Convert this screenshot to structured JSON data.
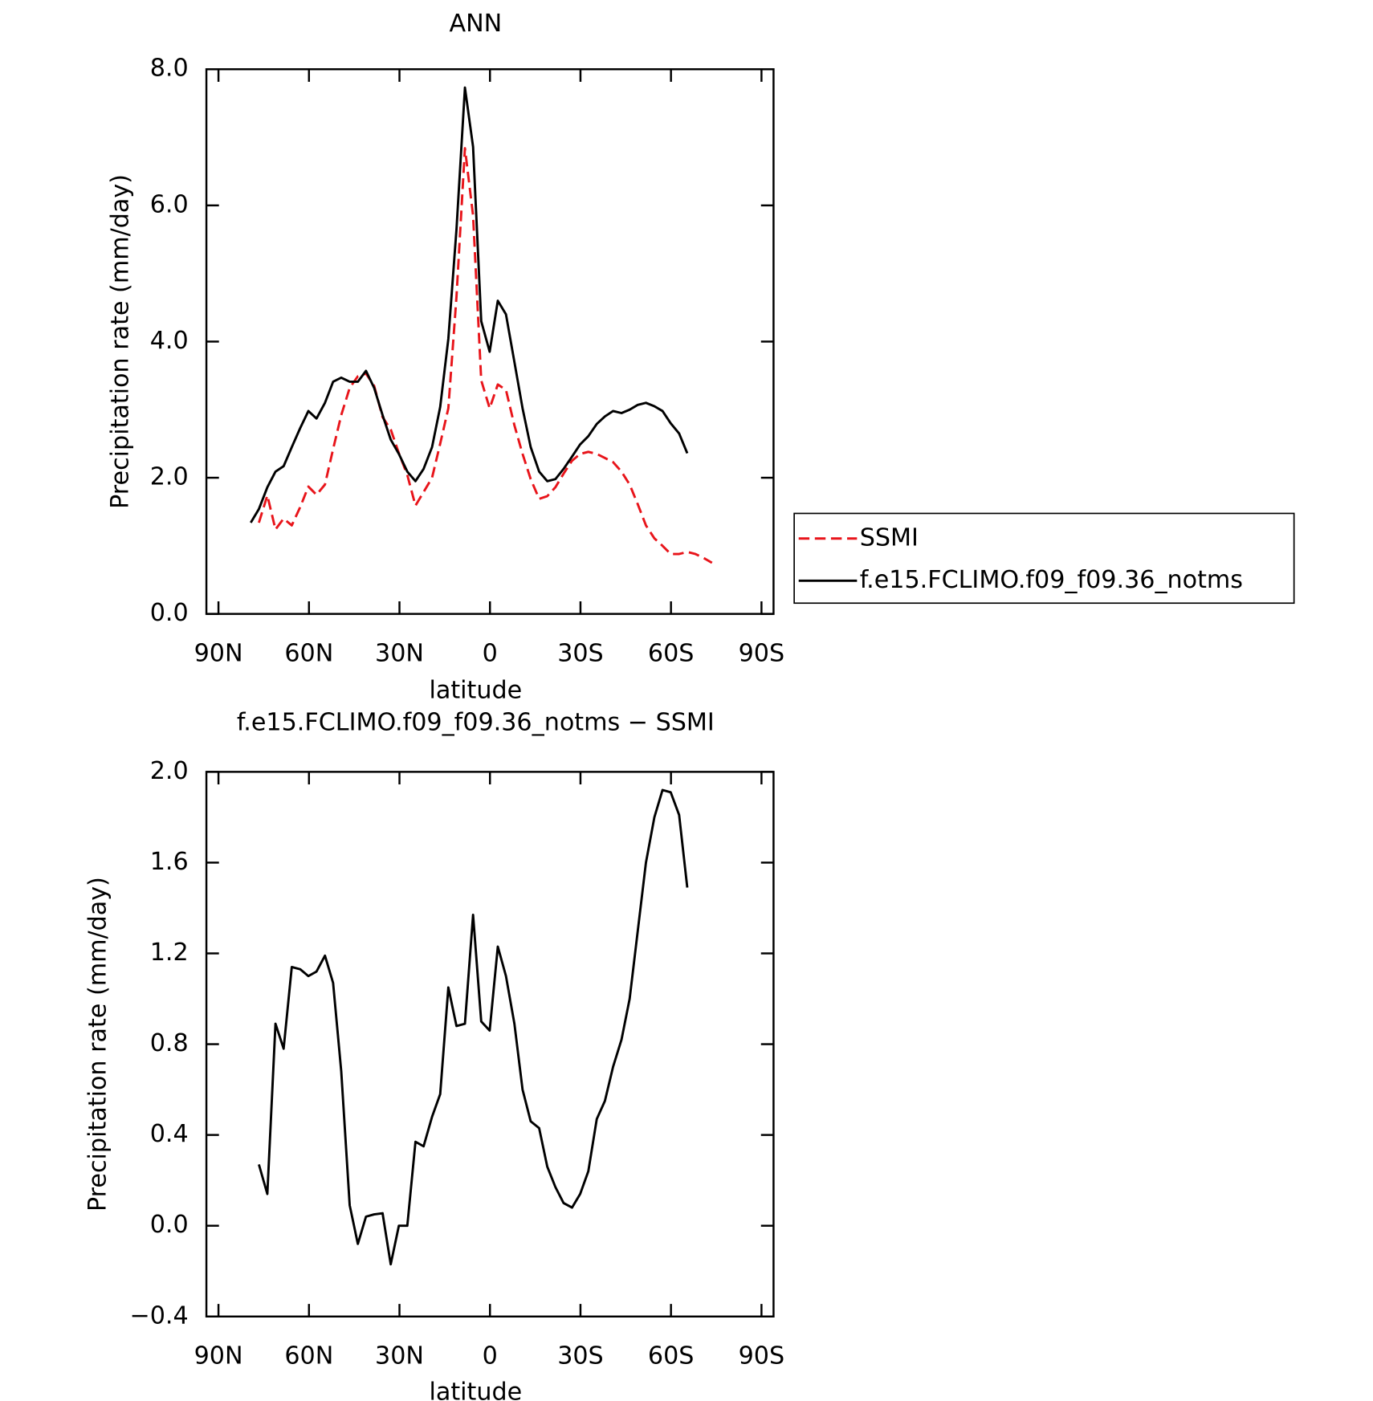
{
  "chart_data": [
    {
      "type": "line",
      "title": "ANN",
      "xlabel": "latitude",
      "ylabel": "Precipitation rate (mm/day)",
      "x": [
        79.3,
        76.6,
        73.8,
        71.1,
        68.4,
        65.7,
        62.9,
        60.2,
        57.5,
        54.7,
        52.0,
        49.3,
        46.5,
        43.8,
        41.1,
        38.4,
        35.6,
        32.9,
        30.2,
        27.4,
        24.7,
        22.0,
        19.2,
        16.5,
        13.8,
        11.1,
        8.3,
        5.6,
        2.9,
        0.1,
        -2.6,
        -5.3,
        -8.1,
        -10.8,
        -13.5,
        -16.3,
        -19.0,
        -21.7,
        -24.4,
        -27.2,
        -29.9,
        -32.6,
        -35.4,
        -38.1,
        -40.8,
        -43.6,
        -46.3,
        -49.0,
        -51.7,
        -54.5,
        -57.2,
        -59.9,
        -62.7,
        -65.4,
        -68.1,
        -70.9,
        -73.6
      ],
      "series": [
        {
          "name": "SSMI",
          "color": "#e8141a",
          "style": "dashed",
          "values": [
            null,
            1.34,
            1.74,
            1.24,
            1.4,
            1.3,
            1.57,
            1.87,
            1.75,
            1.9,
            2.42,
            2.92,
            3.32,
            3.49,
            3.53,
            3.35,
            2.89,
            2.71,
            2.36,
            2.04,
            1.59,
            1.79,
            2.0,
            2.5,
            3.02,
            4.66,
            6.84,
            5.85,
            3.43,
            3.02,
            3.37,
            3.29,
            2.77,
            2.35,
            1.98,
            1.69,
            1.73,
            1.86,
            2.06,
            2.25,
            2.35,
            2.38,
            2.35,
            2.29,
            2.23,
            2.09,
            1.9,
            1.61,
            1.3,
            1.11,
            1.0,
            0.88,
            0.88,
            0.91,
            0.88,
            0.82,
            0.75
          ]
        },
        {
          "name": "f.e15.FCLIMO.f09_f09.36_notms",
          "color": "#000000",
          "style": "solid",
          "values": [
            1.34,
            1.54,
            1.86,
            2.09,
            2.17,
            2.45,
            2.73,
            2.98,
            2.87,
            3.1,
            3.41,
            3.47,
            3.41,
            3.41,
            3.57,
            3.32,
            2.92,
            2.56,
            2.35,
            2.09,
            1.95,
            2.13,
            2.45,
            3.04,
            4.04,
            5.65,
            7.73,
            6.86,
            4.3,
            3.85,
            4.6,
            4.4,
            3.7,
            3.02,
            2.45,
            2.09,
            1.95,
            1.98,
            2.13,
            2.31,
            2.49,
            2.61,
            2.79,
            2.9,
            2.98,
            2.95,
            3.0,
            3.07,
            3.1,
            3.05,
            2.98,
            2.8,
            2.65,
            2.36,
            null,
            null,
            null
          ]
        }
      ],
      "xlim": [
        94,
        -94
      ],
      "xticks": [
        {
          "value": 90,
          "label": "90N"
        },
        {
          "value": 60,
          "label": "60N"
        },
        {
          "value": 30,
          "label": "30N"
        },
        0,
        {
          "value": -30,
          "label": "30S"
        },
        {
          "value": -60,
          "label": "60S"
        },
        {
          "value": -90,
          "label": "90S"
        }
      ],
      "ylim": [
        0,
        8
      ],
      "yticks": [
        {
          "value": 0,
          "label": "0.0"
        },
        {
          "value": 2,
          "label": "2.0"
        },
        {
          "value": 4,
          "label": "4.0"
        },
        {
          "value": 6,
          "label": "6.0"
        },
        {
          "value": 8,
          "label": "8.0"
        }
      ],
      "legend": "outside right"
    },
    {
      "type": "line",
      "title": "f.e15.FCLIMO.f09_f09.36_notms − SSMI",
      "xlabel": "latitude",
      "ylabel": "Precipitation rate (mm/day)",
      "x": [
        79.3,
        76.6,
        73.8,
        71.1,
        68.4,
        65.7,
        62.9,
        60.2,
        57.5,
        54.7,
        52.0,
        49.3,
        46.5,
        43.8,
        41.1,
        38.4,
        35.6,
        32.9,
        30.2,
        27.4,
        24.7,
        22.0,
        19.2,
        16.5,
        13.8,
        11.1,
        8.3,
        5.6,
        2.9,
        0.1,
        -2.6,
        -5.3,
        -8.1,
        -10.8,
        -13.5,
        -16.3,
        -19.0,
        -21.7,
        -24.4,
        -27.2,
        -29.9,
        -32.6,
        -35.4,
        -38.1,
        -40.8,
        -43.6,
        -46.3,
        -49.0,
        -51.7,
        -54.5,
        -57.2,
        -59.9,
        -62.7,
        -65.4,
        -68.1,
        -70.9,
        -73.6
      ],
      "series": [
        {
          "color": "#000000",
          "style": "solid",
          "values": [
            null,
            0.27,
            0.14,
            0.89,
            0.78,
            1.14,
            1.13,
            1.1,
            1.12,
            1.19,
            1.07,
            0.68,
            0.09,
            -0.08,
            0.04,
            0.05,
            0.055,
            -0.17,
            0.0,
            0.0,
            0.37,
            0.35,
            0.48,
            0.58,
            1.05,
            0.88,
            0.89,
            1.37,
            0.9,
            0.86,
            1.23,
            1.1,
            0.89,
            0.6,
            0.46,
            0.43,
            0.26,
            0.17,
            0.1,
            0.08,
            0.14,
            0.24,
            0.47,
            0.55,
            0.7,
            0.82,
            1.0,
            1.3,
            1.6,
            1.8,
            1.92,
            1.91,
            1.81,
            1.49,
            null,
            null,
            null
          ]
        }
      ],
      "xlim": [
        94,
        -94
      ],
      "xticks": [
        {
          "value": 90,
          "label": "90N"
        },
        {
          "value": 60,
          "label": "60N"
        },
        {
          "value": 30,
          "label": "30N"
        },
        0,
        {
          "value": -30,
          "label": "30S"
        },
        {
          "value": -60,
          "label": "60S"
        },
        {
          "value": -90,
          "label": "90S"
        }
      ],
      "ylim": [
        -0.4,
        2.0
      ],
      "yticks": [
        {
          "value": -0.4,
          "label": "−0.4"
        },
        {
          "value": 0,
          "label": "0.0"
        },
        0.4,
        0.8,
        1.2,
        1.6,
        {
          "value": 2.0,
          "label": "2.0"
        }
      ]
    }
  ]
}
